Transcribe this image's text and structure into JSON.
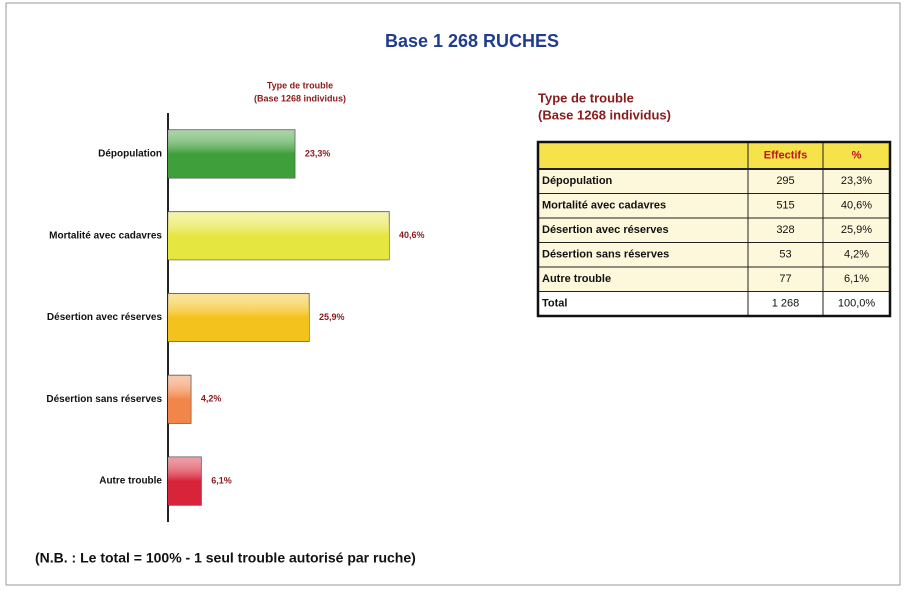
{
  "header": {
    "title": "Base 1 268 RUCHES"
  },
  "chart_data": {
    "type": "bar",
    "orientation": "horizontal",
    "title": "Type de trouble",
    "subtitle": "(Base 1268 individus)",
    "categories": [
      "Dépopulation",
      "Mortalité avec cadavres",
      "Désertion avec réserves",
      "Désertion sans réserves",
      "Autre trouble"
    ],
    "values": [
      23.3,
      40.6,
      25.9,
      4.2,
      6.1
    ],
    "value_labels": [
      "23,3%",
      "40,6%",
      "25,9%",
      "4,2%",
      "6,1%"
    ],
    "colors": [
      "#3f9f3a",
      "#e6e640",
      "#f4c21c",
      "#f2864a",
      "#d8243a"
    ]
  },
  "table": {
    "title": "Type de trouble",
    "subtitle": "(Base 1268 individus)",
    "columns": [
      "Effectifs",
      "%"
    ],
    "rows": [
      [
        "Dépopulation",
        "295",
        "23,3%"
      ],
      [
        "Mortalité avec cadavres",
        "515",
        "40,6%"
      ],
      [
        "Désertion avec réserves",
        "328",
        "25,9%"
      ],
      [
        "Désertion sans réserves",
        "53",
        "4,2%"
      ],
      [
        "Autre trouble",
        "77",
        "6,1%"
      ],
      [
        "Total",
        "1 268",
        "100,0%"
      ]
    ]
  },
  "note": "(N.B. : Le total = 100% - 1 seul trouble autorisé par ruche)"
}
